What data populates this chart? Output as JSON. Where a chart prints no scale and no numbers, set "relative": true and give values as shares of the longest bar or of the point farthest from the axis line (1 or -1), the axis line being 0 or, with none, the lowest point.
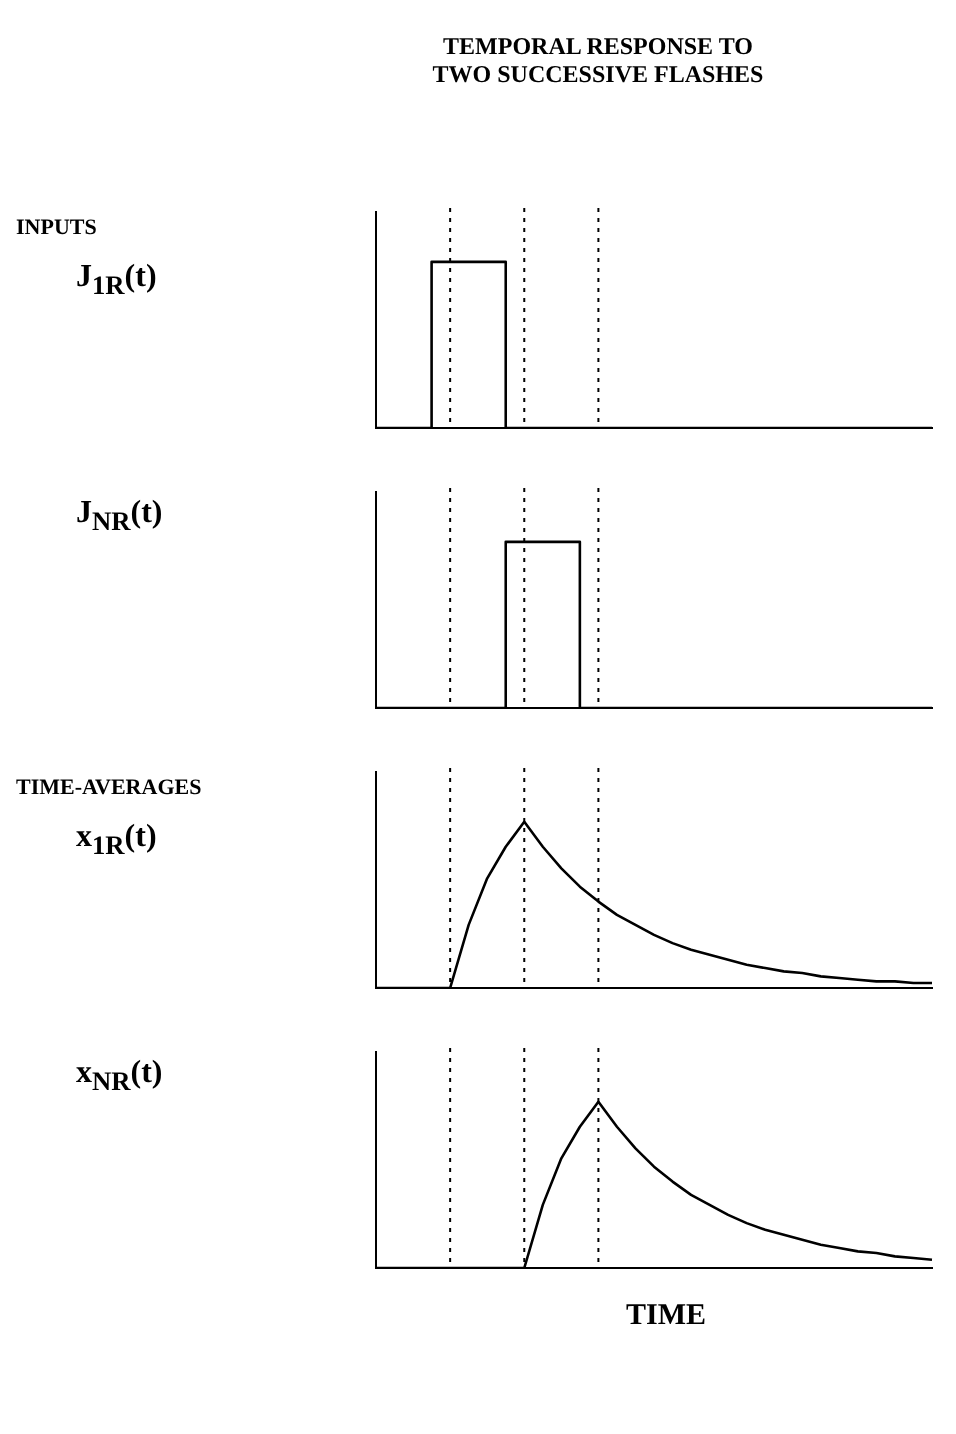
{
  "chart_data": [
    {
      "type": "step",
      "title": "TEMPORAL RESPONSE TO\nTWO SUCCESSIVE FLASHES",
      "annotations": [
        "INPUTS"
      ],
      "ylabel": "J$_{1R}$(t)",
      "relative": true,
      "grid": "x",
      "marker": "none",
      "categories": [
        null,
        null,
        null,
        null,
        null,
        null,
        null,
        null,
        null,
        null,
        null,
        null,
        null,
        null,
        null,
        null,
        null,
        null,
        null,
        null,
        null,
        null,
        null,
        null,
        null,
        null,
        null,
        null,
        null,
        null,
        null
      ],
      "series": [
        {
          "color": "#000000",
          "values": [
            0,
            0,
            0,
            0,
            1,
            1,
            1,
            1,
            0,
            0,
            0,
            0,
            0,
            0,
            0,
            0,
            0,
            0,
            0,
            0,
            0,
            0,
            0,
            0,
            0,
            0,
            0,
            0,
            0,
            0,
            0
          ]
        }
      ]
    },
    {
      "type": "step",
      "ylabel": "J$_{NR}$(t)",
      "relative": true,
      "grid": "x",
      "marker": "none",
      "categories": [
        null,
        null,
        null,
        null,
        null,
        null,
        null,
        null,
        null,
        null,
        null,
        null,
        null,
        null,
        null,
        null,
        null,
        null,
        null,
        null,
        null,
        null,
        null,
        null,
        null,
        null,
        null,
        null,
        null,
        null,
        null
      ],
      "series": [
        {
          "color": "#000000",
          "values": [
            0,
            0,
            0,
            0,
            0,
            0,
            0,
            0,
            1,
            1,
            1,
            1,
            0,
            0,
            0,
            0,
            0,
            0,
            0,
            0,
            0,
            0,
            0,
            0,
            0,
            0,
            0,
            0,
            0,
            0,
            0
          ]
        }
      ]
    },
    {
      "type": "line",
      "annotations": [
        "TIME-AVERAGES"
      ],
      "ylabel": "x$_{1R}$(t)",
      "relative": true,
      "grid": "x",
      "marker": "none",
      "categories": [
        null,
        null,
        null,
        null,
        null,
        null,
        null,
        null,
        null,
        null,
        null,
        null,
        null,
        null,
        null,
        null,
        null,
        null,
        null,
        null,
        null,
        null,
        null,
        null,
        null,
        null,
        null,
        null,
        null,
        null,
        null
      ],
      "series": [
        {
          "color": "#000000",
          "values": [
            0,
            0,
            0,
            0,
            0,
            0.38,
            0.66,
            0.85,
            1,
            0.85,
            0.72,
            0.61,
            0.52,
            0.44,
            0.38,
            0.32,
            0.27,
            0.23,
            0.2,
            0.17,
            0.14,
            0.12,
            0.1,
            0.09,
            0.07,
            0.06,
            0.05,
            0.04,
            0.04,
            0.03,
            0.03
          ]
        }
      ]
    },
    {
      "type": "line",
      "ylabel": "x$_{NR}$(t)",
      "xlabel": "TIME",
      "relative": true,
      "grid": "x",
      "marker": "none",
      "categories": [
        null,
        null,
        null,
        null,
        null,
        null,
        null,
        null,
        null,
        null,
        null,
        null,
        null,
        null,
        null,
        null,
        null,
        null,
        null,
        null,
        null,
        null,
        null,
        null,
        null,
        null,
        null,
        null,
        null,
        null,
        null
      ],
      "series": [
        {
          "color": "#000000",
          "values": [
            0,
            0,
            0,
            0,
            0,
            0,
            0,
            0,
            0,
            0.38,
            0.66,
            0.85,
            1,
            0.85,
            0.72,
            0.61,
            0.52,
            0.44,
            0.38,
            0.32,
            0.27,
            0.23,
            0.2,
            0.17,
            0.14,
            0.12,
            0.1,
            0.09,
            0.07,
            0.06,
            0.05
          ]
        }
      ]
    }
  ]
}
